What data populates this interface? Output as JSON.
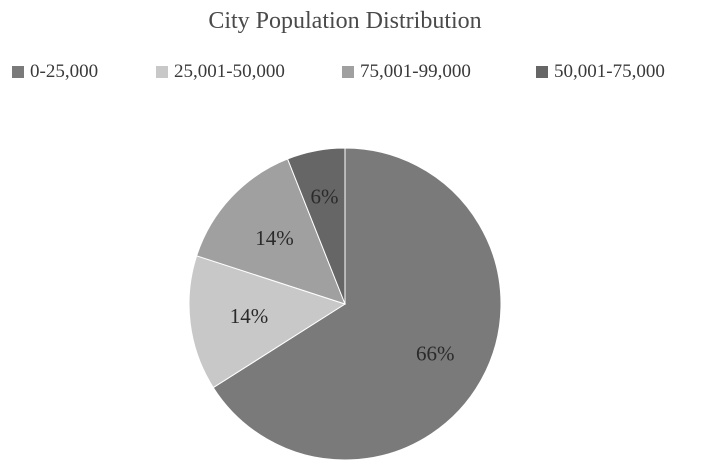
{
  "chart_data": {
    "type": "pie",
    "title": "City Population Distribution",
    "legend_position": "top",
    "slices": [
      {
        "label": "0-25,000",
        "value": 66,
        "display": "66%",
        "color": "#7a7a7a"
      },
      {
        "label": "25,001-50,000",
        "value": 14,
        "display": "14%",
        "color": "#c8c8c8"
      },
      {
        "label": "75,001-99,000",
        "value": 14,
        "display": "14%",
        "color": "#a0a0a0"
      },
      {
        "label": "50,001-75,000",
        "value": 6,
        "display": "6%",
        "color": "#666666"
      }
    ]
  }
}
